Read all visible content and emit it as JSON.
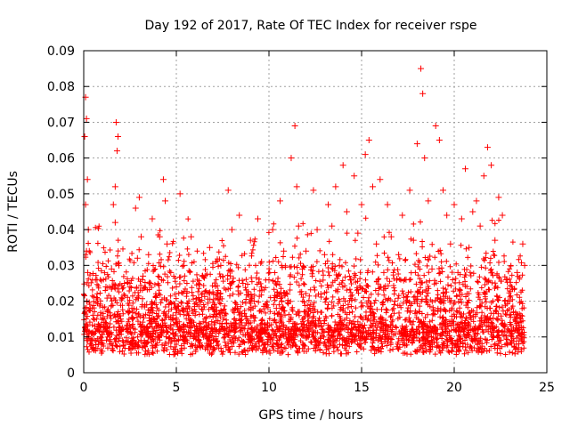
{
  "chart_data": {
    "type": "scatter",
    "title": "Day 192 of 2017, Rate Of TEC Index for receiver rspe",
    "xlabel": "GPS time / hours",
    "ylabel": "ROTI / TECUs",
    "xlim": [
      0,
      25
    ],
    "ylim": [
      0,
      0.09
    ],
    "xticks": [
      0,
      5,
      10,
      15,
      20,
      25
    ],
    "yticks": [
      0,
      0.01,
      0.02,
      0.03,
      0.04,
      0.05,
      0.06,
      0.07,
      0.08,
      0.09
    ],
    "xtick_labels": [
      "0",
      "5",
      "10",
      "15",
      "20",
      "25"
    ],
    "ytick_labels": [
      "0",
      "0.01",
      "0.02",
      "0.03",
      "0.04",
      "0.05",
      "0.06",
      "0.07",
      "0.08",
      "0.09"
    ],
    "grid": true,
    "marker": "+",
    "color": "#ff0000",
    "series": [
      {
        "x": [
          0.05,
          0.1,
          0.15,
          0.2,
          0.25,
          0.1,
          0.15,
          0.12,
          0.18,
          0.22,
          0.3,
          0.35,
          0.4,
          0.45,
          0.5,
          0.6,
          0.7,
          0.8,
          0.9,
          1.0,
          1.1,
          1.2,
          1.3,
          1.4,
          1.5,
          1.6,
          1.7,
          1.75,
          1.8,
          1.85,
          1.7,
          1.9,
          2.0,
          2.1,
          2.2,
          2.3,
          2.4,
          2.5,
          2.6,
          2.7,
          2.8,
          2.9,
          3.0,
          3.1,
          3.2,
          3.3,
          3.4,
          3.5,
          3.6,
          3.7,
          3.8,
          3.9,
          4.0,
          4.1,
          4.2,
          4.3,
          4.4,
          4.5,
          4.6,
          4.7,
          4.8,
          4.9,
          5.0,
          5.2,
          5.4,
          5.6,
          5.8,
          6.0,
          6.2,
          6.4,
          6.6,
          6.8,
          7.0,
          7.2,
          7.4,
          7.6,
          7.8,
          8.0,
          8.2,
          8.4,
          8.6,
          8.8,
          9.0,
          9.2,
          9.4,
          9.6,
          9.8,
          10.0,
          10.2,
          10.4,
          10.6,
          10.8,
          11.0,
          11.2,
          11.4,
          11.5,
          11.6,
          11.8,
          12.0,
          12.2,
          12.4,
          12.6,
          12.8,
          13.0,
          13.2,
          13.4,
          13.6,
          13.8,
          14.0,
          14.2,
          14.4,
          14.6,
          14.8,
          15.0,
          15.2,
          15.4,
          15.6,
          15.8,
          16.0,
          16.2,
          16.4,
          16.6,
          16.8,
          17.0,
          17.2,
          17.4,
          17.6,
          17.8,
          18.0,
          18.2,
          18.3,
          18.4,
          18.6,
          18.8,
          19.0,
          19.2,
          19.4,
          19.6,
          19.8,
          20.0,
          20.2,
          20.4,
          20.6,
          20.8,
          21.0,
          21.2,
          21.4,
          21.6,
          21.8,
          22.0,
          22.2,
          22.4,
          22.6,
          22.8,
          23.0,
          23.2,
          23.4,
          23.6,
          23.7,
          23.8
        ],
        "y": [
          0.066,
          0.077,
          0.071,
          0.054,
          0.04,
          0.047,
          0.034,
          0.012,
          0.009,
          0.028,
          0.034,
          0.018,
          0.009,
          0.011,
          0.007,
          0.013,
          0.021,
          0.008,
          0.01,
          0.006,
          0.015,
          0.024,
          0.017,
          0.008,
          0.029,
          0.047,
          0.052,
          0.07,
          0.062,
          0.066,
          0.042,
          0.03,
          0.015,
          0.009,
          0.025,
          0.012,
          0.017,
          0.024,
          0.018,
          0.009,
          0.046,
          0.032,
          0.049,
          0.038,
          0.027,
          0.012,
          0.019,
          0.033,
          0.025,
          0.043,
          0.015,
          0.021,
          0.01,
          0.038,
          0.026,
          0.054,
          0.048,
          0.036,
          0.019,
          0.028,
          0.012,
          0.009,
          0.024,
          0.05,
          0.03,
          0.017,
          0.038,
          0.01,
          0.021,
          0.027,
          0.014,
          0.035,
          0.009,
          0.022,
          0.03,
          0.012,
          0.051,
          0.04,
          0.018,
          0.044,
          0.025,
          0.015,
          0.037,
          0.02,
          0.043,
          0.031,
          0.011,
          0.026,
          0.04,
          0.018,
          0.048,
          0.034,
          0.022,
          0.06,
          0.069,
          0.052,
          0.041,
          0.029,
          0.034,
          0.018,
          0.051,
          0.04,
          0.022,
          0.033,
          0.047,
          0.041,
          0.052,
          0.03,
          0.058,
          0.045,
          0.026,
          0.055,
          0.039,
          0.047,
          0.061,
          0.065,
          0.052,
          0.036,
          0.054,
          0.028,
          0.047,
          0.038,
          0.02,
          0.033,
          0.044,
          0.026,
          0.051,
          0.037,
          0.064,
          0.085,
          0.078,
          0.06,
          0.048,
          0.029,
          0.069,
          0.065,
          0.051,
          0.044,
          0.036,
          0.047,
          0.028,
          0.043,
          0.057,
          0.035,
          0.045,
          0.048,
          0.041,
          0.055,
          0.063,
          0.058,
          0.037,
          0.049,
          0.044,
          0.026,
          0.02,
          0.017,
          0.028,
          0.016,
          0.036,
          0.03
        ]
      }
    ]
  }
}
